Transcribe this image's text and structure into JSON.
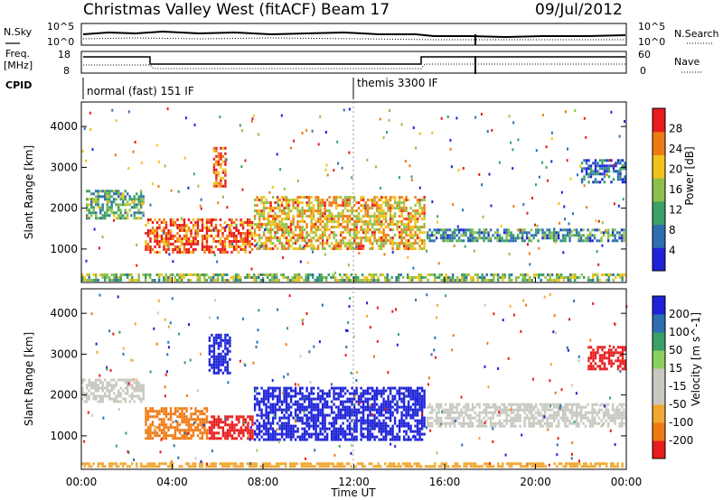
{
  "header": {
    "station": "Christmas Valley West (fitACF)",
    "beam": "Beam 17",
    "date": "09/Jul/2012"
  },
  "panels": {
    "nsky": {
      "label": "N.Sky",
      "ticks": [
        "10^5",
        "10^0"
      ],
      "right_ticks": [
        "10^5",
        "10^0"
      ],
      "right_label": "N.Search"
    },
    "freq": {
      "label_top": "Freq.",
      "label_bottom": "[MHz]",
      "ticks": [
        "18",
        "8"
      ],
      "right_ticks": [
        "60",
        "0"
      ],
      "right_label": "Nave"
    },
    "cpid": {
      "label": "CPID",
      "modes": [
        "normal (fast) 151 IF",
        "themis 3300 IF"
      ]
    }
  },
  "chart_data": [
    {
      "type": "heatmap",
      "title": "",
      "xlabel": "",
      "ylabel": "Slant Range [km]",
      "xlim": [
        0,
        24
      ],
      "ylim": [
        180,
        4600
      ],
      "yticks": [
        "4000",
        "3000",
        "2000",
        "1000"
      ],
      "colorbar": {
        "label": "Power [dB]",
        "ticks": [
          "28",
          "24",
          "20",
          "16",
          "12",
          "8",
          "4"
        ],
        "colors": [
          "#1e23d8",
          "#2d6fb0",
          "#3aa064",
          "#8cc04a",
          "#f0c21a",
          "#f07a12",
          "#e81c1c"
        ]
      },
      "bands": [
        {
          "start_h": 0.2,
          "end_h": 2.8,
          "range_lo": 1750,
          "range_hi": 2450,
          "value": 12
        },
        {
          "start_h": 2.8,
          "end_h": 7.6,
          "range_lo": 900,
          "range_hi": 1750,
          "value": 26
        },
        {
          "start_h": 5.8,
          "end_h": 6.4,
          "range_lo": 2500,
          "range_hi": 3500,
          "value": 24
        },
        {
          "start_h": 7.6,
          "end_h": 15.2,
          "range_lo": 1000,
          "range_hi": 2300,
          "value": 20
        },
        {
          "start_h": 15.2,
          "end_h": 24.0,
          "range_lo": 1150,
          "range_hi": 1500,
          "value": 10
        },
        {
          "start_h": 22.0,
          "end_h": 24.0,
          "range_lo": 2600,
          "range_hi": 3200,
          "value": 6
        },
        {
          "start_h": 0.0,
          "end_h": 24.0,
          "range_lo": 200,
          "range_hi": 400,
          "value": 14
        }
      ]
    },
    {
      "type": "heatmap",
      "title": "",
      "xlabel": "Time UT",
      "ylabel": "Slant Range [km]",
      "xlim": [
        0,
        24
      ],
      "ylim": [
        180,
        4600
      ],
      "xticks": [
        "00:00",
        "04:00",
        "08:00",
        "12:00",
        "16:00",
        "20:00",
        "00:00"
      ],
      "yticks": [
        "4000",
        "3000",
        "2000",
        "1000"
      ],
      "colorbar": {
        "label": "Velocity [m s^-1]",
        "ticks": [
          "200",
          "100",
          "50",
          "15",
          "-15",
          "-50",
          "-100",
          "-200"
        ],
        "colors": [
          "#e81c1c",
          "#f07a12",
          "#f0a830",
          "#c8c8c0",
          "#c8c8c0",
          "#8cd060",
          "#3aa064",
          "#2d6fb0",
          "#1e23d8"
        ]
      },
      "bands": [
        {
          "start_h": 0.0,
          "end_h": 2.8,
          "range_lo": 1800,
          "range_hi": 2400,
          "value": 0
        },
        {
          "start_h": 2.8,
          "end_h": 5.6,
          "range_lo": 900,
          "range_hi": 1700,
          "value": -60
        },
        {
          "start_h": 5.6,
          "end_h": 7.6,
          "range_lo": 900,
          "range_hi": 1500,
          "value": -180
        },
        {
          "start_h": 5.6,
          "end_h": 6.6,
          "range_lo": 2500,
          "range_hi": 3500,
          "value": 180
        },
        {
          "start_h": 7.6,
          "end_h": 15.2,
          "range_lo": 900,
          "range_hi": 2200,
          "value": 190
        },
        {
          "start_h": 15.2,
          "end_h": 24.0,
          "range_lo": 1200,
          "range_hi": 1800,
          "value": 0
        },
        {
          "start_h": 22.3,
          "end_h": 24.0,
          "range_lo": 2600,
          "range_hi": 3200,
          "value": -180
        },
        {
          "start_h": 0.0,
          "end_h": 24.0,
          "range_lo": 200,
          "range_hi": 350,
          "value": -40
        }
      ]
    }
  ]
}
